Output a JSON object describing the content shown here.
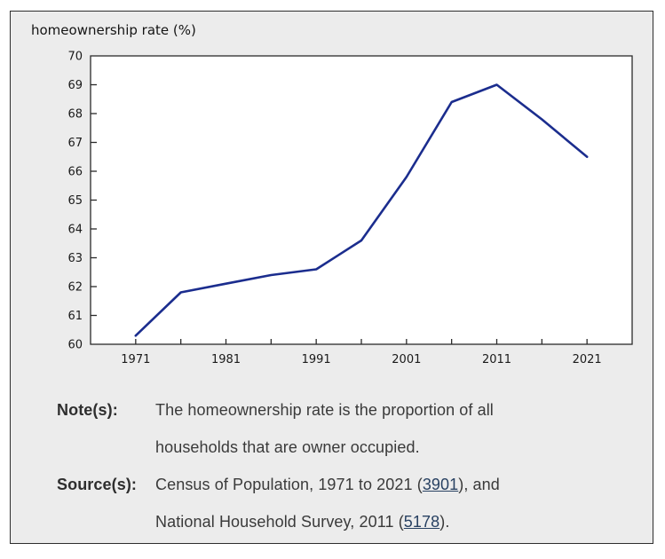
{
  "panel": {
    "title": "homeownership rate (%)"
  },
  "chart_data": {
    "type": "line",
    "title": "homeownership rate (%)",
    "ylabel": "homeownership rate (%)",
    "xlabel": "",
    "x": [
      1971,
      1976,
      1981,
      1986,
      1991,
      1996,
      2001,
      2006,
      2011,
      2016,
      2021
    ],
    "y": [
      60.3,
      61.8,
      62.1,
      62.4,
      62.6,
      63.6,
      65.8,
      68.4,
      69.0,
      67.8,
      66.5
    ],
    "xlim": [
      1966,
      2026
    ],
    "ylim": [
      60,
      70
    ],
    "x_major_ticks": [
      1971,
      1981,
      1991,
      2001,
      2011,
      2021
    ],
    "x_minor_ticks": [
      1976,
      1986,
      1996,
      2006,
      2016
    ],
    "y_ticks": [
      60,
      61,
      62,
      63,
      64,
      65,
      66,
      67,
      68,
      69,
      70
    ],
    "grid": false,
    "legend": "none",
    "line_color": "#1b2d8e"
  },
  "note": {
    "label": "Note(s):",
    "lines": [
      "The homeownership rate is the proportion of all",
      "households that are owner occupied."
    ]
  },
  "source": {
    "label": "Source(s):",
    "lines": [
      {
        "pre": "Census of Population, 1971 to 2021 (",
        "link": "3901",
        "post": "), and"
      },
      {
        "pre": "National Household Survey, 2011 (",
        "link": "5178",
        "post": ")."
      }
    ]
  },
  "colors": {
    "line": "#1b2d8e",
    "panel_bg": "#ececec",
    "panel_border": "#2e2e2e",
    "plot_bg": "#ffffff",
    "axis": "#2a2a2a",
    "tick_label": "#1a1a1a",
    "link": "#284162",
    "text": "#3a3a3a"
  }
}
